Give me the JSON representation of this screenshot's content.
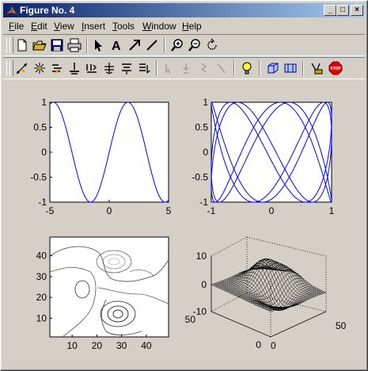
{
  "window": {
    "title": "Figure No. 4",
    "buttons": {
      "minimize": "_",
      "maximize": "□",
      "close": "×"
    }
  },
  "menu": [
    {
      "label": "File",
      "u": "F",
      "rest": "ile"
    },
    {
      "label": "Edit",
      "u": "E",
      "rest": "dit"
    },
    {
      "label": "View",
      "u": "V",
      "rest": "iew"
    },
    {
      "label": "Insert",
      "u": "I",
      "rest": "nsert"
    },
    {
      "label": "Tools",
      "u": "T",
      "rest": "ools"
    },
    {
      "label": "Window",
      "u": "W",
      "rest": "indow"
    },
    {
      "label": "Help",
      "u": "H",
      "rest": "elp"
    }
  ],
  "toolbar1": [
    "new-file-icon",
    "open-folder-icon",
    "save-icon",
    "print-icon",
    "select-arrow-icon",
    "insert-text-icon",
    "insert-arrow-icon",
    "insert-line-icon",
    "zoom-in-icon",
    "zoom-out-icon",
    "rotate-icon"
  ],
  "toolbar2": [
    "edit-points-icon",
    "select-points-icon",
    "align-icon",
    "distribute-icon",
    "align-bottom-icon",
    "align-center-icon",
    "align-top-icon",
    "align-right-icon",
    "cursor-1-icon",
    "cursor-2-icon",
    "cursor-3-icon",
    "cursor-4-icon",
    "lightbulb-icon",
    "cube-icon",
    "view-icon",
    "camera-icon",
    "stop-icon"
  ],
  "stop_label": "STOP",
  "colors": {
    "titlebar_start": "#0a246a",
    "titlebar_end": "#a6caf0",
    "plot_line": "#0000ff",
    "background": "#d4d0c8"
  },
  "chart_data": [
    {
      "type": "line",
      "xlim": [
        -5,
        5
      ],
      "ylim": [
        -1,
        1
      ],
      "xticks": [
        "-5",
        "0",
        "5"
      ],
      "yticks": [
        "1",
        "0.5",
        "0",
        "-0.5",
        "-1"
      ],
      "function": "sin(x)",
      "series": [
        {
          "x": [
            -5,
            -4.712,
            -3.1416,
            -1.5708,
            0,
            1.5708,
            3.1416,
            4.712,
            5
          ],
          "values": [
            0.96,
            1,
            0,
            -1,
            0,
            1,
            0,
            -1,
            -0.96
          ]
        }
      ]
    },
    {
      "type": "line",
      "xlim": [
        -1,
        1
      ],
      "ylim": [
        -1,
        1
      ],
      "xticks": [
        "-1",
        "0",
        "1"
      ],
      "yticks": [
        "1",
        "0.5",
        "0",
        "-0.5",
        "-1"
      ],
      "function": "lissajous"
    },
    {
      "type": "contour",
      "xlim": [
        1,
        49
      ],
      "ylim": [
        1,
        49
      ],
      "xticks": [
        "10",
        "20",
        "30",
        "40"
      ],
      "yticks": [
        "40",
        "30",
        "20",
        "10"
      ]
    },
    {
      "type": "surface",
      "zticks": [
        "10",
        "0",
        "-10"
      ],
      "xticks": [
        "50",
        "0"
      ],
      "yticks": [
        "0",
        "50"
      ]
    }
  ]
}
